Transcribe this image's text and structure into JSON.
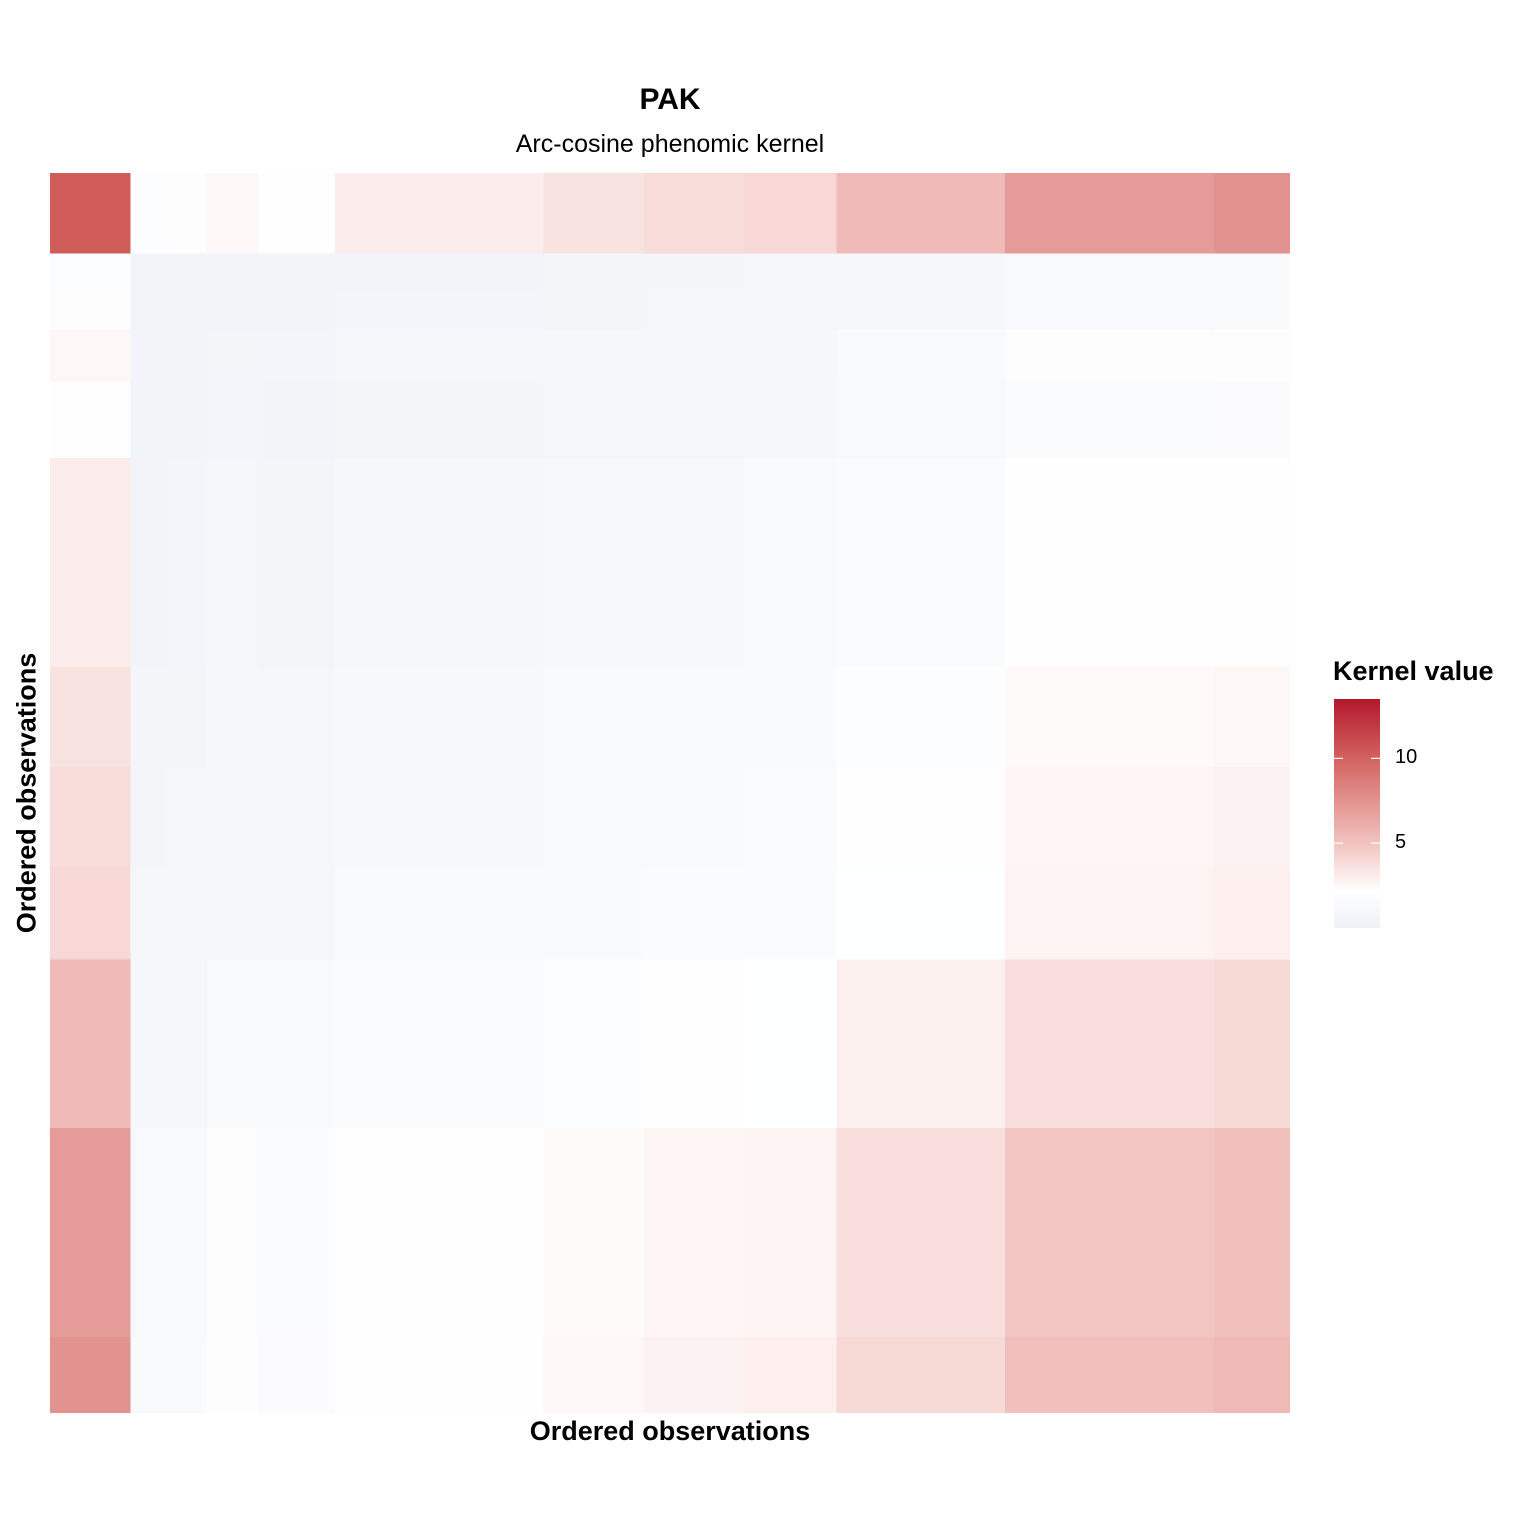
{
  "chart_data": {
    "type": "heatmap",
    "title": "PAK",
    "subtitle": "Arc-cosine phenomic kernel",
    "xlabel": "Ordered observations",
    "ylabel": "Ordered observations",
    "legend": {
      "title": "Kernel value",
      "position": "right",
      "range": [
        0,
        13.5
      ],
      "ticks": [
        10,
        5
      ],
      "tick_labels": [
        "10",
        "5"
      ],
      "colors": [
        {
          "value": 0,
          "color": "#eef1f7"
        },
        {
          "value": 2.2,
          "color": "#ffffff"
        },
        {
          "value": 5,
          "color": "#f2c3bf"
        },
        {
          "value": 10,
          "color": "#d3625f"
        },
        {
          "value": 13.5,
          "color": "#b2182b"
        }
      ]
    },
    "note": "symmetric matrix; block value = scale_i * scale_j",
    "blocks": [
      {
        "size": 20,
        "scale": 3.2
      },
      {
        "size": 9,
        "scale": 0.57
      },
      {
        "size": 10,
        "scale": 0.6
      },
      {
        "size": 13,
        "scale": 0.8
      },
      {
        "size": 19,
        "scale": 0.7
      },
      {
        "size": 52,
        "scale": 0.95
      },
      {
        "size": 25,
        "scale": 1.1
      },
      {
        "size": 25,
        "scale": 1.2
      },
      {
        "size": 23,
        "scale": 1.25
      },
      {
        "size": 42,
        "scale": 1.7
      },
      {
        "size": 52,
        "scale": 2.2
      },
      {
        "size": 19,
        "scale": 2.35
      }
    ]
  }
}
